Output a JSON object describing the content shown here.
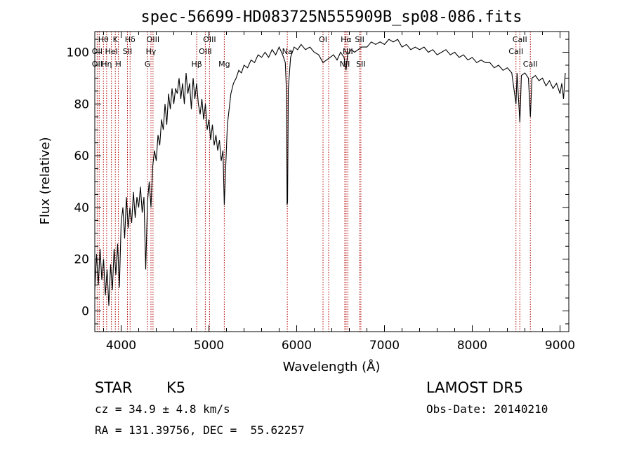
{
  "chart_data": {
    "type": "line",
    "title": "spec-56699-HD083725N555909B_sp08-086.fits",
    "xlabel": "Wavelength (Å)",
    "ylabel": "Flux (relative)",
    "xlim": [
      3700,
      9100
    ],
    "ylim": [
      -8,
      108
    ],
    "x_ticks": [
      4000,
      5000,
      6000,
      7000,
      8000,
      9000
    ],
    "y_ticks": [
      0,
      20,
      40,
      60,
      80,
      100
    ],
    "grid": false,
    "series": [
      {
        "points": [
          [
            3700,
            8
          ],
          [
            3720,
            22
          ],
          [
            3740,
            10
          ],
          [
            3760,
            24
          ],
          [
            3780,
            12
          ],
          [
            3800,
            20
          ],
          [
            3820,
            6
          ],
          [
            3840,
            16
          ],
          [
            3860,
            2
          ],
          [
            3880,
            18
          ],
          [
            3900,
            8
          ],
          [
            3920,
            24
          ],
          [
            3940,
            14
          ],
          [
            3960,
            26
          ],
          [
            3980,
            9
          ],
          [
            4000,
            34
          ],
          [
            4020,
            40
          ],
          [
            4040,
            28
          ],
          [
            4060,
            44
          ],
          [
            4080,
            32
          ],
          [
            4100,
            40
          ],
          [
            4120,
            34
          ],
          [
            4140,
            46
          ],
          [
            4160,
            36
          ],
          [
            4180,
            44
          ],
          [
            4200,
            40
          ],
          [
            4220,
            48
          ],
          [
            4240,
            38
          ],
          [
            4260,
            44
          ],
          [
            4280,
            16
          ],
          [
            4300,
            42
          ],
          [
            4320,
            50
          ],
          [
            4340,
            40
          ],
          [
            4360,
            56
          ],
          [
            4380,
            62
          ],
          [
            4400,
            58
          ],
          [
            4420,
            68
          ],
          [
            4440,
            64
          ],
          [
            4460,
            74
          ],
          [
            4480,
            70
          ],
          [
            4500,
            80
          ],
          [
            4520,
            72
          ],
          [
            4540,
            84
          ],
          [
            4560,
            78
          ],
          [
            4580,
            86
          ],
          [
            4600,
            80
          ],
          [
            4620,
            86
          ],
          [
            4640,
            84
          ],
          [
            4660,
            90
          ],
          [
            4680,
            82
          ],
          [
            4700,
            88
          ],
          [
            4720,
            80
          ],
          [
            4740,
            92
          ],
          [
            4760,
            84
          ],
          [
            4780,
            88
          ],
          [
            4800,
            78
          ],
          [
            4820,
            90
          ],
          [
            4840,
            82
          ],
          [
            4860,
            88
          ],
          [
            4880,
            80
          ],
          [
            4900,
            76
          ],
          [
            4920,
            82
          ],
          [
            4940,
            74
          ],
          [
            4960,
            80
          ],
          [
            4980,
            70
          ],
          [
            5000,
            74
          ],
          [
            5020,
            66
          ],
          [
            5040,
            72
          ],
          [
            5060,
            64
          ],
          [
            5080,
            68
          ],
          [
            5100,
            62
          ],
          [
            5120,
            66
          ],
          [
            5140,
            58
          ],
          [
            5160,
            62
          ],
          [
            5175,
            41
          ],
          [
            5190,
            55
          ],
          [
            5210,
            72
          ],
          [
            5230,
            78
          ],
          [
            5250,
            84
          ],
          [
            5280,
            88
          ],
          [
            5310,
            90
          ],
          [
            5340,
            93
          ],
          [
            5370,
            92
          ],
          [
            5400,
            95
          ],
          [
            5440,
            94
          ],
          [
            5480,
            97
          ],
          [
            5520,
            96
          ],
          [
            5560,
            99
          ],
          [
            5600,
            98
          ],
          [
            5640,
            100
          ],
          [
            5680,
            98
          ],
          [
            5720,
            101
          ],
          [
            5760,
            99
          ],
          [
            5800,
            102
          ],
          [
            5840,
            99
          ],
          [
            5870,
            96
          ],
          [
            5885,
            84
          ],
          [
            5890,
            41
          ],
          [
            5896,
            42
          ],
          [
            5905,
            86
          ],
          [
            5930,
            98
          ],
          [
            5970,
            102
          ],
          [
            6010,
            101
          ],
          [
            6050,
            103
          ],
          [
            6100,
            101
          ],
          [
            6150,
            102
          ],
          [
            6200,
            100
          ],
          [
            6250,
            99
          ],
          [
            6300,
            96
          ],
          [
            6340,
            97
          ],
          [
            6380,
            98
          ],
          [
            6420,
            99
          ],
          [
            6460,
            97
          ],
          [
            6500,
            100
          ],
          [
            6540,
            98
          ],
          [
            6562,
            93
          ],
          [
            6580,
            99
          ],
          [
            6620,
            101
          ],
          [
            6660,
            100
          ],
          [
            6700,
            101
          ],
          [
            6740,
            102
          ],
          [
            6800,
            102
          ],
          [
            6850,
            104
          ],
          [
            6900,
            103
          ],
          [
            6950,
            104
          ],
          [
            7000,
            103
          ],
          [
            7050,
            105
          ],
          [
            7100,
            104
          ],
          [
            7150,
            105
          ],
          [
            7200,
            102
          ],
          [
            7250,
            103
          ],
          [
            7300,
            101
          ],
          [
            7350,
            102
          ],
          [
            7400,
            101
          ],
          [
            7450,
            102
          ],
          [
            7500,
            100
          ],
          [
            7550,
            101
          ],
          [
            7600,
            99
          ],
          [
            7650,
            100
          ],
          [
            7700,
            101
          ],
          [
            7750,
            99
          ],
          [
            7800,
            100
          ],
          [
            7850,
            98
          ],
          [
            7900,
            99
          ],
          [
            7950,
            97
          ],
          [
            8000,
            98
          ],
          [
            8050,
            96
          ],
          [
            8100,
            97
          ],
          [
            8150,
            96
          ],
          [
            8200,
            96
          ],
          [
            8250,
            94
          ],
          [
            8300,
            95
          ],
          [
            8350,
            93
          ],
          [
            8400,
            94
          ],
          [
            8450,
            92
          ],
          [
            8498,
            80
          ],
          [
            8510,
            92
          ],
          [
            8542,
            73
          ],
          [
            8560,
            91
          ],
          [
            8600,
            92
          ],
          [
            8640,
            90
          ],
          [
            8662,
            75
          ],
          [
            8680,
            90
          ],
          [
            8720,
            91
          ],
          [
            8760,
            89
          ],
          [
            8800,
            90
          ],
          [
            8840,
            87
          ],
          [
            8880,
            89
          ],
          [
            8920,
            86
          ],
          [
            8960,
            88
          ],
          [
            9000,
            84
          ],
          [
            9020,
            88
          ],
          [
            9040,
            82
          ],
          [
            9060,
            92
          ]
        ]
      }
    ],
    "lines": [
      {
        "x": 3727,
        "labels": [
          "OII"
        ]
      },
      {
        "x": 3750,
        "labels": [
          "OII"
        ]
      },
      {
        "x": 3798,
        "labels": [
          "Hθ"
        ]
      },
      {
        "x": 3835,
        "labels": [
          "Hη"
        ]
      },
      {
        "x": 3889,
        "labels": [
          "HeI"
        ]
      },
      {
        "x": 3934,
        "labels": [
          "K"
        ]
      },
      {
        "x": 3969,
        "labels": [
          "H"
        ]
      },
      {
        "x": 4072,
        "labels": [
          "SII"
        ]
      },
      {
        "x": 4102,
        "labels": [
          "Hδ"
        ]
      },
      {
        "x": 4300,
        "labels": [
          "G"
        ]
      },
      {
        "x": 4340,
        "labels": [
          "Hγ"
        ]
      },
      {
        "x": 4363,
        "labels": [
          "OIII"
        ]
      },
      {
        "x": 4861,
        "labels": [
          "Hβ"
        ]
      },
      {
        "x": 4959,
        "labels": [
          "OIII"
        ]
      },
      {
        "x": 5007,
        "labels": [
          "OIII"
        ]
      },
      {
        "x": 5175,
        "labels": [
          "Mg"
        ]
      },
      {
        "x": 5893,
        "labels": [
          "Na"
        ]
      },
      {
        "x": 6300,
        "labels": [
          "OI"
        ]
      },
      {
        "x": 6364,
        "labels": [
          ""
        ]
      },
      {
        "x": 6548,
        "labels": [
          "NII"
        ]
      },
      {
        "x": 6563,
        "labels": [
          "Hα"
        ]
      },
      {
        "x": 6583,
        "labels": [
          "NII"
        ]
      },
      {
        "x": 6717,
        "labels": [
          "SII"
        ]
      },
      {
        "x": 6731,
        "labels": [
          "SII"
        ]
      },
      {
        "x": 8498,
        "labels": [
          "CaII"
        ]
      },
      {
        "x": 8542,
        "labels": [
          "CaII"
        ]
      },
      {
        "x": 8662,
        "labels": [
          "CaII"
        ]
      }
    ],
    "line_labels": [
      {
        "text": "Hθ",
        "x": 3798,
        "row": 0
      },
      {
        "text": "K",
        "x": 3934,
        "row": 0
      },
      {
        "text": "Hδ",
        "x": 4102,
        "row": 0
      },
      {
        "text": "OIII",
        "x": 4363,
        "row": 0
      },
      {
        "text": "OIII",
        "x": 5007,
        "row": 0
      },
      {
        "text": "OI",
        "x": 6300,
        "row": 0
      },
      {
        "text": "Hα",
        "x": 6563,
        "row": 0
      },
      {
        "text": "SII",
        "x": 6717,
        "row": 0
      },
      {
        "text": "CaII",
        "x": 8542,
        "row": 0
      },
      {
        "text": "OII",
        "x": 3727,
        "row": 1
      },
      {
        "text": "HeI",
        "x": 3889,
        "row": 1
      },
      {
        "text": "SII",
        "x": 4072,
        "row": 1
      },
      {
        "text": "Hγ",
        "x": 4340,
        "row": 1
      },
      {
        "text": "OIII",
        "x": 4959,
        "row": 1
      },
      {
        "text": "NII",
        "x": 6583,
        "row": 1
      },
      {
        "text": "CaII",
        "x": 8498,
        "row": 1
      },
      {
        "text": "OII",
        "x": 3727,
        "row": 2
      },
      {
        "text": "Hη",
        "x": 3835,
        "row": 2
      },
      {
        "text": "H",
        "x": 3969,
        "row": 2
      },
      {
        "text": "G",
        "x": 4300,
        "row": 2
      },
      {
        "text": "Hβ",
        "x": 4861,
        "row": 2
      },
      {
        "text": "Mg",
        "x": 5175,
        "row": 2
      },
      {
        "text": "Na",
        "x": 5893,
        "row": 1
      },
      {
        "text": "NII",
        "x": 6548,
        "row": 2
      },
      {
        "text": "SII",
        "x": 6731,
        "row": 2
      },
      {
        "text": "CaII",
        "x": 8662,
        "row": 2
      }
    ],
    "colors": {
      "spectrum": "#000000",
      "lines": "#b00000"
    }
  },
  "info": {
    "class": "STAR",
    "subclass": "K5",
    "survey": "LAMOST DR5",
    "redshift": "cz = 34.9 ± 4.8 km/s",
    "obs_date": "Obs-Date: 20140210",
    "coords": "RA = 131.39756, DEC =  55.62257"
  }
}
